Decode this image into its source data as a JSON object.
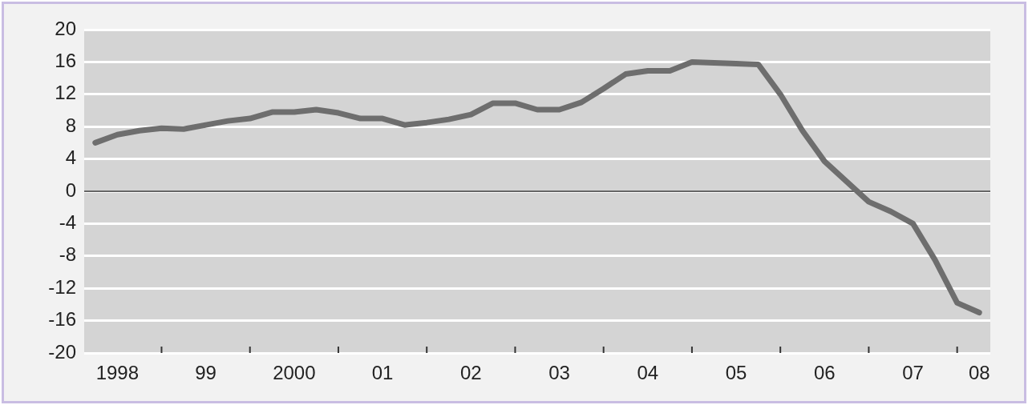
{
  "chart_data": {
    "type": "line",
    "categories": [
      null,
      "1998",
      null,
      null,
      null,
      "99",
      null,
      null,
      null,
      "2000",
      null,
      null,
      null,
      "01",
      null,
      null,
      null,
      "02",
      null,
      null,
      null,
      "03",
      null,
      null,
      null,
      "04",
      null,
      null,
      null,
      "05",
      null,
      null,
      null,
      "06",
      null,
      null,
      null,
      "07",
      null,
      null,
      "08"
    ],
    "series": [
      {
        "color": "#6e6e6e",
        "values": [
          6.0,
          7.0,
          7.5,
          7.8,
          7.7,
          8.2,
          8.7,
          9.0,
          9.8,
          9.8,
          10.1,
          9.7,
          9.0,
          9.0,
          8.2,
          8.5,
          8.9,
          9.5,
          10.9,
          10.9,
          10.1,
          10.1,
          11.0,
          12.7,
          14.5,
          14.9,
          14.9,
          16.0,
          15.9,
          15.8,
          15.7,
          12.0,
          7.5,
          3.7,
          1.2,
          -1.3,
          -2.5,
          -4.0,
          -8.5,
          -13.8,
          -15.0
        ]
      }
    ],
    "ylim": [
      -20,
      20
    ],
    "yticks": [
      -20,
      -16,
      -12,
      -8,
      -4,
      0,
      4,
      8,
      12,
      16,
      20
    ],
    "ref_lines": [
      {
        "axis": "y",
        "value": 0,
        "color": "#333333"
      }
    ],
    "grid": "y",
    "legend": false,
    "marker": "none",
    "line_style": "solid"
  }
}
